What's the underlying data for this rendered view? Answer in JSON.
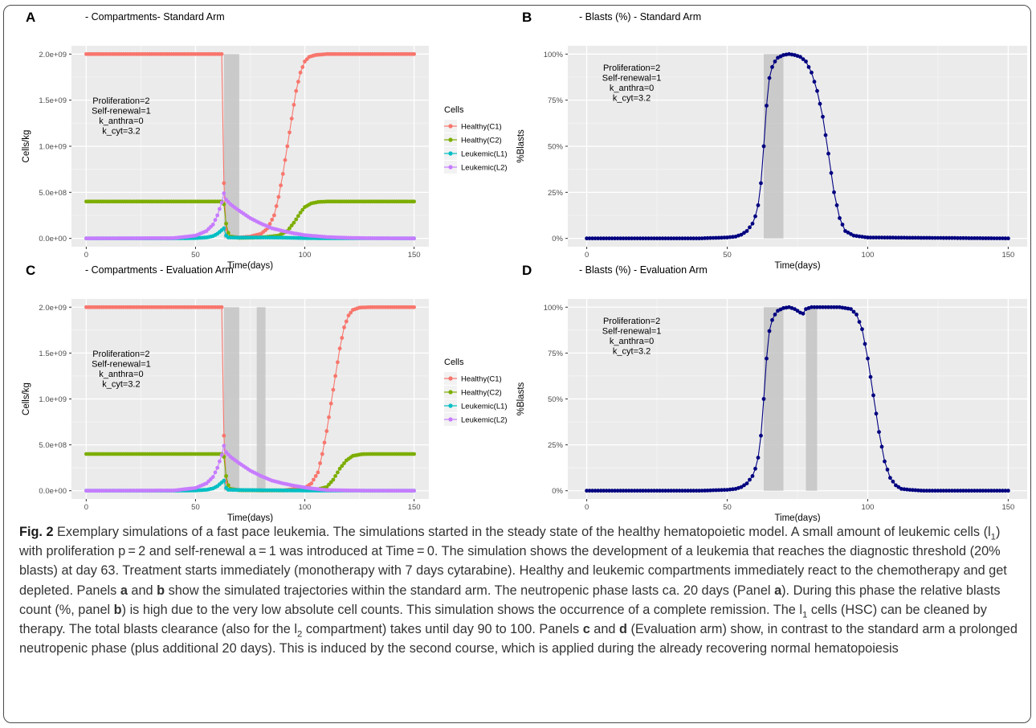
{
  "panels": [
    {
      "letter": "A",
      "title": "- Compartments- Standard Arm",
      "xlabel": "Time(days)",
      "ylabel": "Cells/kg",
      "annotation": [
        "Proliferation=2",
        "Self-renewal=1",
        "k_anthra=0",
        "k_cyt=3.2"
      ]
    },
    {
      "letter": "B",
      "title": "- Blasts (%) - Standard Arm",
      "xlabel": "Time(days)",
      "ylabel": "%Blasts",
      "annotation": [
        "Proliferation=2",
        "Self-renewal=1",
        "k_anthra=0",
        "k_cyt=3.2"
      ]
    },
    {
      "letter": "C",
      "title": "- Compartments -  Evaluation Arm",
      "xlabel": "Time(days)",
      "ylabel": "Cells/kg",
      "annotation": [
        "Proliferation=2",
        "Self-renewal=1",
        "k_anthra=0",
        "k_cyt=3.2"
      ]
    },
    {
      "letter": "D",
      "title": "- Blasts (%) - Evaluation Arm",
      "xlabel": "Time(days)",
      "ylabel": "%Blasts",
      "annotation": [
        "Proliferation=2",
        "Self-renewal=1",
        "k_anthra=0",
        "k_cyt=3.2"
      ]
    }
  ],
  "legend": {
    "title": "Cells",
    "entries": [
      {
        "label": "Healthy(C1)",
        "color": "#F8766D"
      },
      {
        "label": "Healthy(C2)",
        "color": "#7CAE00"
      },
      {
        "label": "Leukemic(L1)",
        "color": "#00BFC4"
      },
      {
        "label": "Leukemic(L2)",
        "color": "#C77CFF"
      }
    ]
  },
  "chart_data": [
    {
      "type": "line",
      "panel": "A",
      "x_range": [
        0,
        150
      ],
      "y_range": [
        0,
        2000000000
      ],
      "x_ticks": [
        0,
        50,
        100,
        150
      ],
      "y_ticks": [
        0,
        500000000,
        1000000000,
        1500000000,
        2000000000
      ],
      "y_tick_labels": [
        "0.0e+00",
        "5.0e+08",
        "1.0e+09",
        "1.5e+09",
        "2.0e+09"
      ],
      "treatment_windows": [
        [
          63,
          70
        ]
      ],
      "series": [
        {
          "name": "Healthy(C1)",
          "x": [
            0,
            62,
            62.5,
            63,
            64,
            66,
            70,
            75,
            80,
            83,
            86,
            88,
            90,
            92,
            94,
            96,
            98,
            100,
            102,
            105,
            110,
            150
          ],
          "y": [
            2000000000,
            2000000000,
            1950000000,
            600000000,
            100000000,
            20000000,
            10000000,
            20000000,
            50000000,
            110000000,
            250000000,
            450000000,
            700000000,
            1000000000,
            1300000000,
            1600000000,
            1800000000,
            1920000000,
            1970000000,
            1990000000,
            2000000000,
            2000000000
          ]
        },
        {
          "name": "Healthy(C2)",
          "x": [
            0,
            62,
            63,
            64,
            65,
            66,
            70,
            80,
            88,
            92,
            95,
            98,
            100,
            103,
            106,
            110,
            150
          ],
          "y": [
            400000000,
            400000000,
            370000000,
            160000000,
            60000000,
            20000000,
            5000000,
            10000000,
            30000000,
            80000000,
            170000000,
            280000000,
            340000000,
            380000000,
            395000000,
            400000000,
            400000000
          ]
        },
        {
          "name": "Leukemic(L1)",
          "x": [
            0,
            40,
            50,
            55,
            58,
            60,
            62,
            63,
            64,
            65,
            70,
            80,
            90,
            100,
            110,
            150
          ],
          "y": [
            0,
            0,
            3000000,
            10000000,
            25000000,
            50000000,
            90000000,
            110000000,
            30000000,
            10000000,
            8000000,
            10000000,
            8000000,
            3000000,
            1000000,
            0
          ]
        },
        {
          "name": "Leukemic(L2)",
          "x": [
            0,
            40,
            50,
            55,
            58,
            60,
            62,
            63,
            64,
            66,
            70,
            75,
            80,
            85,
            90,
            95,
            100,
            110,
            120,
            130,
            150
          ],
          "y": [
            0,
            3000000,
            30000000,
            80000000,
            150000000,
            250000000,
            390000000,
            490000000,
            420000000,
            370000000,
            300000000,
            220000000,
            160000000,
            110000000,
            80000000,
            55000000,
            35000000,
            15000000,
            6000000,
            2000000,
            0
          ]
        }
      ]
    },
    {
      "type": "line",
      "panel": "B",
      "x_range": [
        0,
        150
      ],
      "y_range": [
        0,
        100
      ],
      "x_ticks": [
        0,
        50,
        100,
        150
      ],
      "y_ticks": [
        0,
        25,
        50,
        75,
        100
      ],
      "y_tick_labels": [
        "0%",
        "25%",
        "50%",
        "75%",
        "100%"
      ],
      "treatment_windows": [
        [
          63,
          70
        ]
      ],
      "series": [
        {
          "name": "Blasts",
          "color": "#000080",
          "x": [
            0,
            40,
            50,
            53,
            55,
            57,
            59,
            60,
            61,
            62,
            63,
            64,
            65,
            66,
            67,
            68,
            70,
            72,
            74,
            76,
            78,
            80,
            82,
            84,
            86,
            88,
            90,
            92,
            95,
            100,
            150
          ],
          "y": [
            0,
            0,
            0.5,
            1,
            2,
            4,
            8,
            12,
            18,
            30,
            50,
            72,
            87,
            93,
            96,
            98,
            99.5,
            100,
            99.5,
            98.5,
            96,
            90,
            80,
            66,
            46,
            25,
            11,
            4,
            1.5,
            0.5,
            0
          ]
        }
      ]
    },
    {
      "type": "line",
      "panel": "C",
      "x_range": [
        0,
        150
      ],
      "y_range": [
        0,
        2000000000
      ],
      "x_ticks": [
        0,
        50,
        100,
        150
      ],
      "y_ticks": [
        0,
        500000000,
        1000000000,
        1500000000,
        2000000000
      ],
      "y_tick_labels": [
        "0.0e+00",
        "5.0e+08",
        "1.0e+09",
        "1.5e+09",
        "2.0e+09"
      ],
      "treatment_windows": [
        [
          63,
          70
        ],
        [
          78,
          82
        ]
      ],
      "series": [
        {
          "name": "Healthy(C1)",
          "x": [
            0,
            62,
            62.5,
            63,
            64,
            66,
            70,
            80,
            90,
            100,
            103,
            106,
            108,
            110,
            112,
            114,
            116,
            118,
            120,
            122,
            125,
            130,
            150
          ],
          "y": [
            2000000000,
            2000000000,
            1950000000,
            600000000,
            100000000,
            20000000,
            8000000,
            3000000,
            5000000,
            30000000,
            80000000,
            200000000,
            400000000,
            650000000,
            950000000,
            1250000000,
            1550000000,
            1780000000,
            1910000000,
            1970000000,
            1995000000,
            2000000000,
            2000000000
          ]
        },
        {
          "name": "Healthy(C2)",
          "x": [
            0,
            62,
            63,
            64,
            65,
            66,
            70,
            90,
            105,
            110,
            113,
            116,
            119,
            122,
            126,
            130,
            150
          ],
          "y": [
            400000000,
            400000000,
            370000000,
            160000000,
            60000000,
            20000000,
            5000000,
            3000000,
            10000000,
            40000000,
            120000000,
            240000000,
            330000000,
            380000000,
            398000000,
            400000000,
            400000000
          ]
        },
        {
          "name": "Leukemic(L1)",
          "x": [
            0,
            40,
            50,
            55,
            58,
            60,
            62,
            63,
            64,
            65,
            70,
            80,
            90,
            100,
            110,
            150
          ],
          "y": [
            0,
            0,
            3000000,
            10000000,
            25000000,
            50000000,
            90000000,
            110000000,
            30000000,
            10000000,
            8000000,
            6000000,
            4000000,
            2000000,
            1000000,
            0
          ]
        },
        {
          "name": "Leukemic(L2)",
          "x": [
            0,
            40,
            50,
            55,
            58,
            60,
            62,
            63,
            64,
            66,
            70,
            75,
            80,
            85,
            90,
            95,
            100,
            105,
            110,
            120,
            130,
            150
          ],
          "y": [
            0,
            3000000,
            30000000,
            80000000,
            150000000,
            250000000,
            390000000,
            490000000,
            420000000,
            370000000,
            300000000,
            220000000,
            160000000,
            110000000,
            80000000,
            55000000,
            35000000,
            20000000,
            8000000,
            3000000,
            1000000,
            0
          ]
        }
      ]
    },
    {
      "type": "line",
      "panel": "D",
      "x_range": [
        0,
        150
      ],
      "y_range": [
        0,
        100
      ],
      "x_ticks": [
        0,
        50,
        100,
        150
      ],
      "y_ticks": [
        0,
        25,
        50,
        75,
        100
      ],
      "y_tick_labels": [
        "0%",
        "25%",
        "50%",
        "75%",
        "100%"
      ],
      "treatment_windows": [
        [
          63,
          70
        ],
        [
          78,
          82
        ]
      ],
      "series": [
        {
          "name": "Blasts",
          "color": "#000080",
          "x": [
            0,
            40,
            50,
            53,
            55,
            57,
            59,
            60,
            61,
            62,
            63,
            64,
            65,
            66,
            67,
            68,
            70,
            72,
            74,
            76,
            77,
            78,
            80,
            85,
            90,
            94,
            96,
            98,
            100,
            102,
            104,
            106,
            108,
            110,
            112,
            115,
            120,
            150
          ],
          "y": [
            0,
            0,
            0.5,
            1,
            2,
            4,
            8,
            12,
            18,
            30,
            50,
            72,
            87,
            93,
            96,
            98,
            99.5,
            100,
            99,
            97,
            96.5,
            99,
            100,
            100,
            100,
            99,
            96,
            88,
            72,
            52,
            32,
            16,
            7,
            3,
            1,
            0.5,
            0,
            0
          ]
        }
      ]
    }
  ],
  "caption": {
    "fig_label": "Fig. 2",
    "p1": " Exemplary simulations of a fast pace leukemia. The simulations started in the steady state of the healthy hematopoietic model. A small amount of leukemic cells (l",
    "p1_sub": "1",
    "p2": ") with proliferation p = 2 and self-renewal a = 1 was introduced at Time = 0. The simulation shows the development of a leukemia that reaches the diagnostic threshold (20% blasts) at day 63. Treatment starts immediately (monotherapy with 7 days cytarabine). Healthy and leukemic compartments immediately react to the chemotherapy and get depleted. Panels ",
    "b_a": "a",
    "p3": " and ",
    "b_b": "b",
    "p4": " show the simulated trajectories within the standard arm. The neutropenic phase lasts ca. 20 days (Panel ",
    "b_a2": "a",
    "p5": "). During this phase the relative blasts count (%, panel ",
    "b_b2": "b",
    "p6": ") is high due to the very low absolute cell counts. This simulation shows the occurrence of a complete remission. The l",
    "p6_sub": "1",
    "p7": " cells (HSC) can be cleaned by therapy. The total blasts clearance (also for the l",
    "p7_sub": "2",
    "p8": " compartment) takes until day 90 to 100. Panels ",
    "b_c": "c",
    "p9": " and ",
    "b_d": "d",
    "p10": " (Evaluation arm) show, in contrast to the standard arm a prolonged neutropenic phase (plus additional 20 days). This is induced by the second course, which is applied during the already recovering normal hematopoiesis"
  }
}
